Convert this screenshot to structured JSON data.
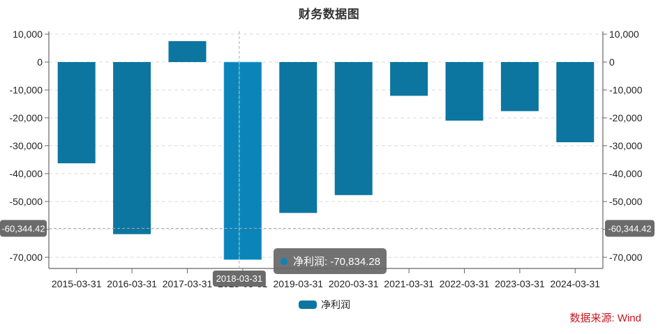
{
  "chart_data": {
    "type": "bar",
    "title": "财务数据图",
    "categories": [
      "2015-03-31",
      "2016-03-31",
      "2017-03-31",
      "2018-03-31",
      "2019-03-31",
      "2020-03-31",
      "2021-03-31",
      "2022-03-31",
      "2023-03-31",
      "2024-03-31"
    ],
    "series": [
      {
        "name": "净利润",
        "color": "#0c76a0",
        "values": [
          -36300,
          -61700,
          7500,
          -70834.28,
          -54100,
          -47700,
          -12100,
          -21000,
          -17600,
          -28750
        ]
      }
    ],
    "xlabel": "",
    "ylabel": "",
    "ylim": [
      -74000,
      11000
    ],
    "yticks": [
      10000,
      0,
      -10000,
      -20000,
      -30000,
      -40000,
      -50000,
      -60000,
      -70000
    ],
    "ytick_labels": [
      "10,000",
      "0",
      "-10,000",
      "-20,000",
      "-30,000",
      "-40,000",
      "-50,000",
      "-60,000",
      "-70,000"
    ],
    "dual_y_axis_mirrored": true,
    "grid": "horizontal dashed",
    "legend_position": "bottom-center",
    "highlighted_index": 3,
    "highlight_color": "#0b84b9"
  },
  "crosshair": {
    "y_value_label": "-60,344.42",
    "x_value_label": "2018-03-31"
  },
  "tooltip": {
    "series_name": "净利润",
    "separator": ": ",
    "value": "-70,834.28",
    "text": "净利润: -70,834.28",
    "dot_color": "#0b84b9"
  },
  "legend": {
    "label": "净利润",
    "color": "#0c76a0"
  },
  "source": {
    "text": "数据来源: Wind",
    "color": "#c8161d"
  }
}
